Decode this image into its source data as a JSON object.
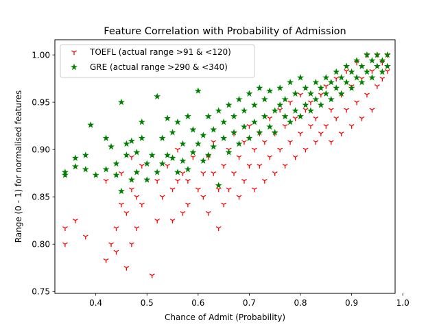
{
  "chart_data": {
    "type": "scatter",
    "title": "Feature Correlation with Probability of Admission",
    "xlabel": "Chance of Admit (Probability)",
    "ylabel": "Range (0 - 1) for normalised features",
    "xlim": [
      0.32,
      0.985
    ],
    "ylim": [
      0.748,
      1.016
    ],
    "xticks": [
      0.4,
      0.5,
      0.6,
      0.7,
      0.8,
      0.9,
      1.0
    ],
    "xtick_labels": [
      "0.4",
      "0.5",
      "0.6",
      "0.7",
      "0.8",
      "0.9",
      "1.0"
    ],
    "yticks": [
      0.75,
      0.8,
      0.85,
      0.9,
      0.95,
      1.0
    ],
    "ytick_labels": [
      "0.75",
      "0.80",
      "0.85",
      "0.90",
      "0.95",
      "1.00"
    ],
    "grid": false,
    "legend_position": "top-left",
    "series": [
      {
        "name": "TOEFL (actual range >91 & <120)",
        "marker": "tri-down",
        "color": "#ff0000",
        "x": [
          0.34,
          0.34,
          0.36,
          0.38,
          0.42,
          0.42,
          0.43,
          0.44,
          0.44,
          0.45,
          0.45,
          0.46,
          0.46,
          0.47,
          0.47,
          0.47,
          0.48,
          0.48,
          0.49,
          0.49,
          0.51,
          0.52,
          0.52,
          0.53,
          0.54,
          0.55,
          0.55,
          0.56,
          0.56,
          0.57,
          0.57,
          0.58,
          0.58,
          0.59,
          0.6,
          0.61,
          0.61,
          0.62,
          0.62,
          0.63,
          0.63,
          0.64,
          0.64,
          0.65,
          0.65,
          0.66,
          0.66,
          0.67,
          0.67,
          0.68,
          0.68,
          0.69,
          0.69,
          0.7,
          0.7,
          0.71,
          0.71,
          0.72,
          0.72,
          0.73,
          0.73,
          0.74,
          0.74,
          0.75,
          0.75,
          0.76,
          0.76,
          0.77,
          0.77,
          0.78,
          0.78,
          0.79,
          0.79,
          0.8,
          0.8,
          0.81,
          0.81,
          0.82,
          0.82,
          0.83,
          0.83,
          0.84,
          0.84,
          0.85,
          0.85,
          0.86,
          0.86,
          0.87,
          0.87,
          0.88,
          0.88,
          0.89,
          0.89,
          0.9,
          0.9,
          0.91,
          0.91,
          0.92,
          0.92,
          0.93,
          0.93,
          0.94,
          0.94,
          0.95,
          0.95,
          0.96,
          0.96,
          0.97,
          0.97
        ],
        "y": [
          0.8,
          0.817,
          0.825,
          0.808,
          0.783,
          0.867,
          0.8,
          0.792,
          0.817,
          0.842,
          0.875,
          0.775,
          0.833,
          0.8,
          0.858,
          0.892,
          0.817,
          0.85,
          0.842,
          0.883,
          0.767,
          0.825,
          0.867,
          0.85,
          0.883,
          0.825,
          0.858,
          0.867,
          0.9,
          0.833,
          0.875,
          0.842,
          0.867,
          0.892,
          0.858,
          0.85,
          0.875,
          0.833,
          0.892,
          0.875,
          0.908,
          0.817,
          0.858,
          0.842,
          0.883,
          0.858,
          0.9,
          0.875,
          0.917,
          0.85,
          0.892,
          0.867,
          0.908,
          0.883,
          0.925,
          0.858,
          0.9,
          0.883,
          0.917,
          0.867,
          0.908,
          0.892,
          0.933,
          0.875,
          0.917,
          0.9,
          0.942,
          0.883,
          0.925,
          0.908,
          0.95,
          0.892,
          0.933,
          0.917,
          0.958,
          0.9,
          0.942,
          0.925,
          0.95,
          0.908,
          0.933,
          0.917,
          0.958,
          0.925,
          0.967,
          0.908,
          0.942,
          0.933,
          0.975,
          0.917,
          0.958,
          0.942,
          0.983,
          0.925,
          0.967,
          0.95,
          0.992,
          0.933,
          0.975,
          0.958,
          1.0,
          0.942,
          0.983,
          0.967,
          1.0,
          0.975,
          0.992,
          0.983,
          1.0
        ]
      },
      {
        "name": "GRE (actual range >290 & <340)",
        "marker": "star",
        "color": "#008000",
        "x": [
          0.34,
          0.34,
          0.36,
          0.36,
          0.38,
          0.38,
          0.39,
          0.4,
          0.42,
          0.42,
          0.43,
          0.44,
          0.44,
          0.45,
          0.45,
          0.46,
          0.46,
          0.47,
          0.47,
          0.48,
          0.48,
          0.49,
          0.49,
          0.5,
          0.5,
          0.51,
          0.52,
          0.52,
          0.53,
          0.53,
          0.54,
          0.54,
          0.55,
          0.55,
          0.56,
          0.56,
          0.57,
          0.57,
          0.58,
          0.58,
          0.59,
          0.59,
          0.6,
          0.6,
          0.61,
          0.61,
          0.62,
          0.62,
          0.63,
          0.63,
          0.64,
          0.64,
          0.65,
          0.65,
          0.66,
          0.66,
          0.67,
          0.67,
          0.68,
          0.68,
          0.69,
          0.69,
          0.7,
          0.7,
          0.71,
          0.71,
          0.72,
          0.72,
          0.73,
          0.73,
          0.74,
          0.74,
          0.75,
          0.75,
          0.76,
          0.76,
          0.77,
          0.77,
          0.78,
          0.78,
          0.79,
          0.79,
          0.8,
          0.8,
          0.81,
          0.81,
          0.82,
          0.82,
          0.83,
          0.83,
          0.84,
          0.84,
          0.85,
          0.85,
          0.86,
          0.86,
          0.87,
          0.87,
          0.88,
          0.88,
          0.89,
          0.89,
          0.9,
          0.9,
          0.91,
          0.91,
          0.92,
          0.92,
          0.93,
          0.93,
          0.94,
          0.94,
          0.95,
          0.95,
          0.96,
          0.96,
          0.97,
          0.97
        ],
        "y": [
          0.873,
          0.876,
          0.882,
          0.891,
          0.879,
          0.894,
          0.926,
          0.873,
          0.912,
          0.879,
          0.903,
          0.873,
          0.885,
          0.95,
          0.856,
          0.894,
          0.906,
          0.868,
          0.909,
          0.876,
          0.897,
          0.929,
          0.912,
          0.885,
          0.868,
          0.894,
          0.876,
          0.956,
          0.885,
          0.912,
          0.933,
          0.894,
          0.891,
          0.918,
          0.929,
          0.876,
          0.906,
          0.888,
          0.935,
          0.879,
          0.897,
          0.921,
          0.962,
          0.906,
          0.915,
          0.888,
          0.935,
          0.894,
          0.921,
          0.903,
          0.941,
          0.862,
          0.912,
          0.929,
          0.897,
          0.947,
          0.918,
          0.935,
          0.906,
          0.953,
          0.924,
          0.941,
          0.912,
          0.959,
          0.929,
          0.947,
          0.918,
          0.965,
          0.935,
          0.953,
          0.924,
          0.962,
          0.941,
          0.918,
          0.947,
          0.965,
          0.935,
          0.953,
          0.929,
          0.971,
          0.941,
          0.959,
          0.935,
          0.976,
          0.947,
          0.965,
          0.941,
          0.959,
          0.953,
          0.971,
          0.947,
          0.965,
          0.959,
          0.976,
          0.953,
          0.971,
          0.965,
          0.982,
          0.959,
          0.976,
          0.971,
          0.988,
          0.965,
          0.982,
          0.976,
          0.994,
          0.971,
          0.988,
          0.982,
          1.0,
          0.976,
          0.994,
          0.988,
          1.0,
          0.982,
          0.994,
          0.988,
          1.0
        ]
      }
    ]
  }
}
